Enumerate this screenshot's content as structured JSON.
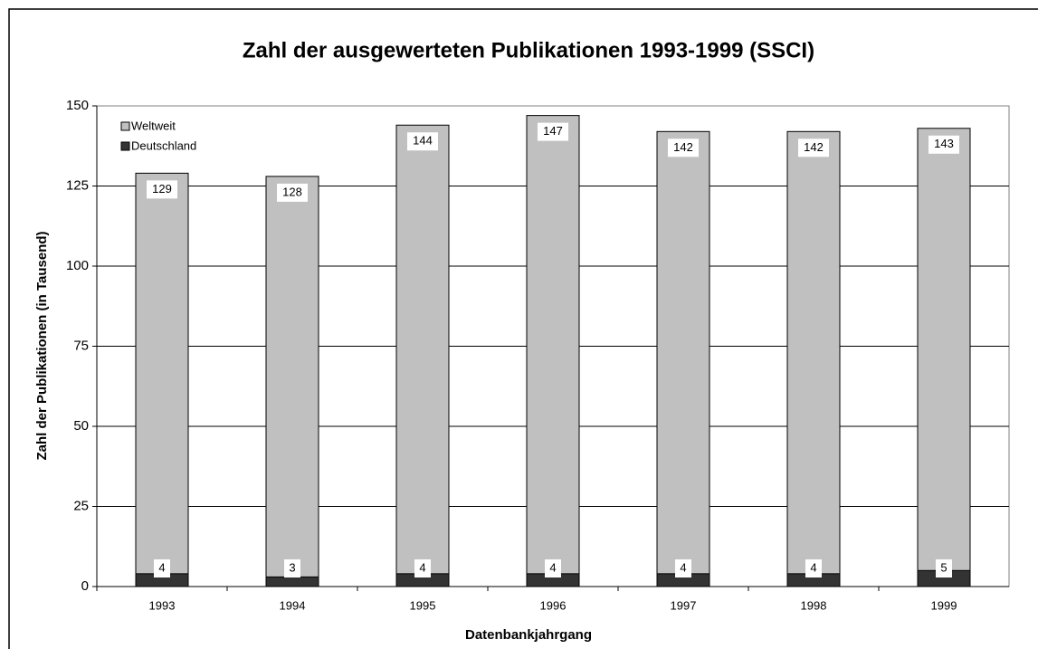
{
  "chart_data": {
    "type": "bar",
    "title": "Zahl der ausgewerteten Publikationen 1993-1999 (SSCI)",
    "x_label": "Datenbankjahrgang",
    "y_label": "Zahl der Publikationen (in Tausend)",
    "categories": [
      "1993",
      "1994",
      "1995",
      "1996",
      "1997",
      "1998",
      "1999"
    ],
    "series": [
      {
        "name": "Weltweit",
        "color": "#c0c0c0",
        "values": [
          129,
          128,
          144,
          147,
          142,
          142,
          143
        ]
      },
      {
        "name": "Deutschland",
        "color": "#333333",
        "values": [
          4,
          3,
          4,
          4,
          4,
          4,
          5
        ]
      }
    ],
    "ylim": [
      0,
      150
    ],
    "yticks": [
      0,
      25,
      50,
      75,
      100,
      125,
      150
    ],
    "grid": true,
    "legend": "top-left"
  }
}
